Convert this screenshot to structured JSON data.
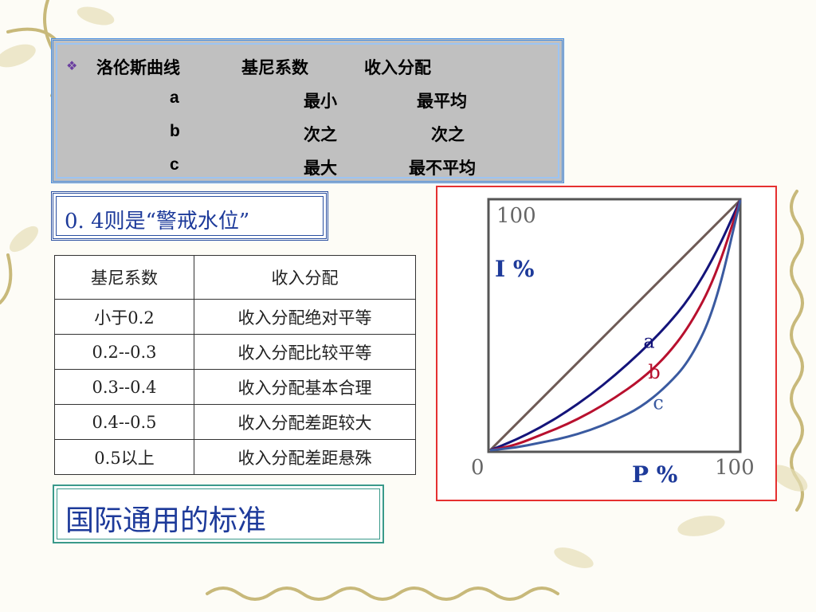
{
  "info": {
    "header": [
      "洛伦斯曲线",
      "基尼系数",
      "收入分配"
    ],
    "rows": [
      {
        "curve": "a",
        "gini": "最小",
        "distribution": "最平均"
      },
      {
        "curve": "b",
        "gini": "次之",
        "distribution": "次之"
      },
      {
        "curve": "c",
        "gini": "最大",
        "distribution": "最不平均"
      }
    ]
  },
  "warning": "0. 4则是“警戒水位”",
  "table": {
    "headers": [
      "基尼系数",
      "收入分配"
    ],
    "rows": [
      [
        "小于0.2",
        "收入分配绝对平等"
      ],
      [
        "0.2--0.3",
        "收入分配比较平等"
      ],
      [
        "0.3--0.4",
        "收入分配基本合理"
      ],
      [
        "0.4--0.5",
        "收入分配差距较大"
      ],
      [
        "0.5以上",
        "收入分配差距悬殊"
      ]
    ]
  },
  "standard": "国际通用的标准",
  "chart_data": {
    "type": "line",
    "title": "",
    "xlabel": "P %",
    "ylabel": "I %",
    "xlim": [
      0,
      100
    ],
    "ylim": [
      0,
      100
    ],
    "tick_labels": {
      "origin": "0",
      "x_max": "100",
      "y_max": "100"
    },
    "series": [
      {
        "name": "",
        "color": "#6e5a55",
        "x": [
          0,
          100
        ],
        "y": [
          0,
          100
        ]
      },
      {
        "name": "a",
        "color": "#14147a",
        "x": [
          0,
          10,
          20,
          30,
          40,
          50,
          60,
          70,
          80,
          90,
          100
        ],
        "y": [
          0,
          4,
          9,
          15,
          22,
          30,
          39,
          49,
          61,
          78,
          100
        ]
      },
      {
        "name": "b",
        "color": "#b8102e",
        "x": [
          0,
          10,
          20,
          30,
          40,
          50,
          60,
          70,
          80,
          90,
          100
        ],
        "y": [
          0,
          2,
          6,
          10,
          15,
          21,
          28,
          37,
          50,
          69,
          100
        ]
      },
      {
        "name": "c",
        "color": "#3a5aa0",
        "x": [
          0,
          10,
          20,
          30,
          40,
          50,
          60,
          70,
          80,
          90,
          100
        ],
        "y": [
          0,
          1,
          3,
          5,
          8,
          12,
          17,
          25,
          36,
          57,
          100
        ]
      }
    ],
    "grid": false
  }
}
